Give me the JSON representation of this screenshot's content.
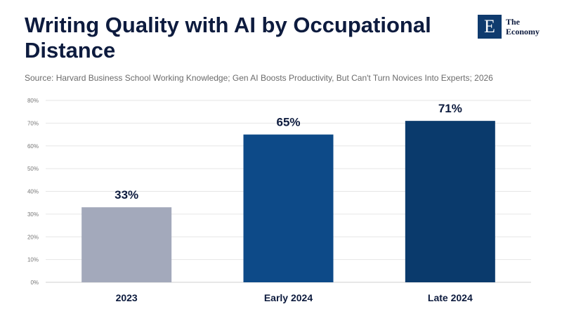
{
  "header": {
    "title": "Writing Quality with AI by Occupational Distance",
    "source": "Source: Harvard Business School Working Knowledge; Gen AI Boosts Productivity, But Can't Turn Novices Into Experts; 2026"
  },
  "logo": {
    "mark": "E",
    "line1": "The",
    "line2": "Economy"
  },
  "colors": {
    "bar_2023": "#a3a9bb",
    "bar_early_2024": "#0d4a88",
    "bar_late_2024": "#0a3a6c",
    "text_dark": "#0d1b3e",
    "grid": "#e6e6e6"
  },
  "chart_data": {
    "type": "bar",
    "title": "",
    "categories": [
      "2023",
      "Early 2024",
      "Late 2024"
    ],
    "values": [
      33,
      65,
      71
    ],
    "data_labels": [
      "33%",
      "65%",
      "71%"
    ],
    "ylim": [
      0,
      80
    ],
    "yticks": [
      "0%",
      "10%",
      "20%",
      "30%",
      "40%",
      "50%",
      "60%",
      "70%",
      "80%"
    ],
    "ytick_values": [
      0,
      10,
      20,
      30,
      40,
      50,
      60,
      70,
      80
    ],
    "grid": true,
    "xlabel": "",
    "ylabel": ""
  }
}
